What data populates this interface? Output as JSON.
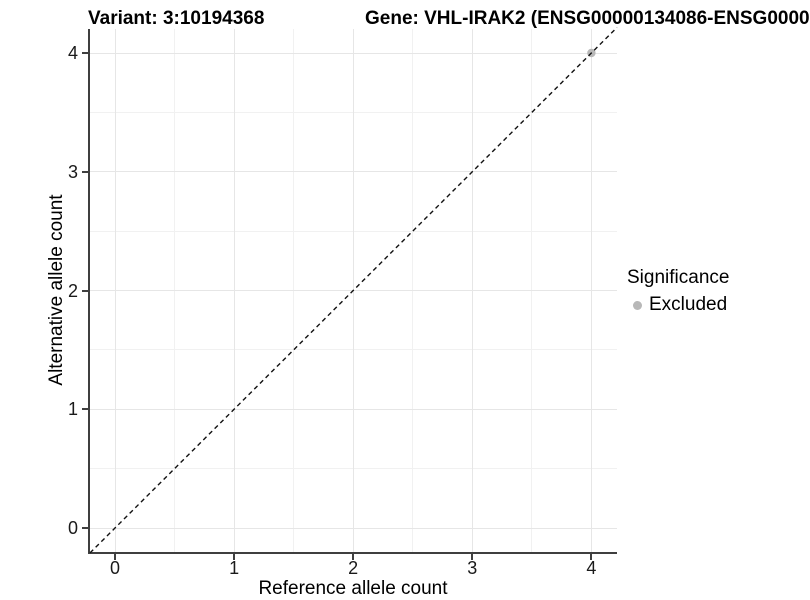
{
  "titles": {
    "variant": "Variant: 3:10194368",
    "gene": "Gene: VHL-IRAK2 (ENSG00000134086-ENSG0000"
  },
  "chart_data": {
    "type": "scatter",
    "xlabel": "Reference allele count",
    "ylabel": "Alternative allele count",
    "x_ticks": [
      0,
      1,
      2,
      3,
      4
    ],
    "y_ticks": [
      0,
      1,
      2,
      3,
      4
    ],
    "xlim": [
      -0.21,
      4.22
    ],
    "ylim": [
      -0.2,
      4.2
    ],
    "grid": "major+minor on, light gray",
    "series": [
      {
        "name": "Excluded",
        "color": "#b8b8b8",
        "points": [
          {
            "x": 4,
            "y": 4
          }
        ]
      }
    ],
    "reference_line": {
      "kind": "identity y=x",
      "style": "dashed",
      "color": "#111111"
    },
    "legend": {
      "title": "Significance",
      "position": "right",
      "entries": [
        {
          "label": "Excluded",
          "color": "#b8b8b8",
          "marker": "circle"
        }
      ]
    },
    "colors": {
      "axis_line": "#3f3f3f",
      "grid_major": "#e6e6e6",
      "grid_minor": "#f1f1f1",
      "tick_text": "#1a1a1a"
    }
  }
}
